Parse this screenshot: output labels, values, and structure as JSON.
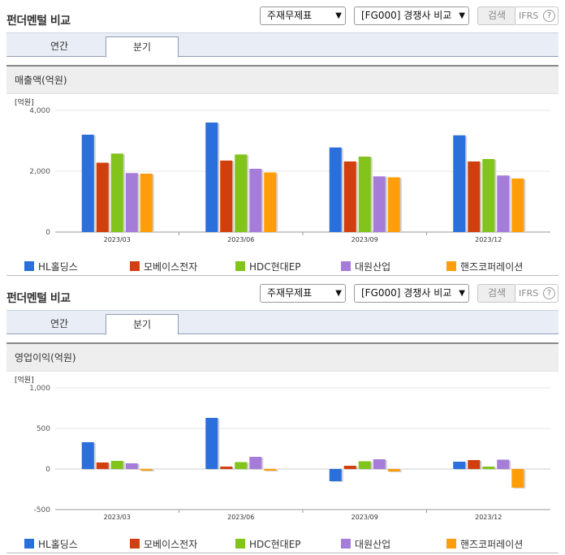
{
  "panels": [
    {
      "title": "펀더멘털 비교",
      "select_statement": "주재무제표",
      "select_compare": "[FG000] 경쟁사 비교",
      "search_label": "검색",
      "ifrs_label": "IFRS",
      "help_label": "?",
      "tabs": [
        {
          "label": "연간",
          "active": false
        },
        {
          "label": "분기",
          "active": true
        }
      ]
    },
    {
      "title": "펀더멘털 비교",
      "select_statement": "주재무제표",
      "select_compare": "[FG000] 경쟁사 비교",
      "search_label": "검색",
      "ifrs_label": "IFRS",
      "help_label": "?",
      "tabs": [
        {
          "label": "연간",
          "active": false
        },
        {
          "label": "분기",
          "active": true
        }
      ]
    }
  ],
  "chart_data": [
    {
      "type": "bar",
      "title": "매출액(억원)",
      "ylabel": "[억원]",
      "categories": [
        "2023/03",
        "2023/06",
        "2023/09",
        "2023/12"
      ],
      "ylim": [
        0,
        4000
      ],
      "yticks": [
        0,
        2000,
        4000
      ],
      "ytick_labels": [
        "0",
        "2,000",
        "4,000"
      ],
      "grid": true,
      "legend_position": "bottom",
      "series": [
        {
          "name": "HL홀딩스",
          "color": "#2a6fdb",
          "values": [
            3200,
            3600,
            2780,
            3180
          ]
        },
        {
          "name": "모베이스전자",
          "color": "#d23f0e",
          "values": [
            2280,
            2350,
            2320,
            2320
          ]
        },
        {
          "name": "HDC현대EP",
          "color": "#82c31c",
          "values": [
            2580,
            2550,
            2480,
            2400
          ]
        },
        {
          "name": "대원산업",
          "color": "#a67cd9",
          "values": [
            1940,
            2080,
            1830,
            1860
          ]
        },
        {
          "name": "핸즈코퍼레이션",
          "color": "#ff9d0a",
          "values": [
            1920,
            1960,
            1800,
            1760
          ]
        }
      ]
    },
    {
      "type": "bar",
      "title": "영업이익(억원)",
      "ylabel": "[억원]",
      "categories": [
        "2023/03",
        "2023/06",
        "2023/09",
        "2023/12"
      ],
      "ylim": [
        -500,
        1000
      ],
      "yticks": [
        -500,
        0,
        500,
        1000
      ],
      "ytick_labels": [
        "-500",
        "0",
        "500",
        "1,000"
      ],
      "grid": true,
      "legend_position": "bottom",
      "series": [
        {
          "name": "HL홀딩스",
          "color": "#2a6fdb",
          "values": [
            330,
            630,
            -150,
            90
          ]
        },
        {
          "name": "모베이스전자",
          "color": "#d23f0e",
          "values": [
            80,
            30,
            40,
            110
          ]
        },
        {
          "name": "HDC현대EP",
          "color": "#82c31c",
          "values": [
            100,
            85,
            95,
            30
          ]
        },
        {
          "name": "대원산업",
          "color": "#a67cd9",
          "values": [
            70,
            150,
            120,
            115
          ]
        },
        {
          "name": "핸즈코퍼레이션",
          "color": "#ff9d0a",
          "values": [
            -20,
            -20,
            -30,
            -230
          ]
        }
      ]
    }
  ]
}
